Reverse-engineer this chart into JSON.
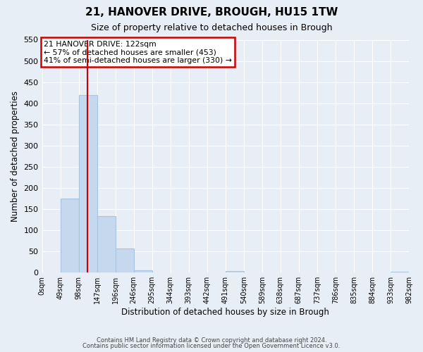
{
  "title": "21, HANOVER DRIVE, BROUGH, HU15 1TW",
  "subtitle": "Size of property relative to detached houses in Brough",
  "xlabel": "Distribution of detached houses by size in Brough",
  "ylabel": "Number of detached properties",
  "bin_edges": [
    0,
    49,
    98,
    147,
    196,
    245,
    294,
    343,
    392,
    441,
    490,
    539,
    588,
    637,
    686,
    735,
    784,
    833,
    882,
    931,
    980
  ],
  "bin_labels": [
    "0sqm",
    "49sqm",
    "98sqm",
    "147sqm",
    "196sqm",
    "246sqm",
    "295sqm",
    "344sqm",
    "393sqm",
    "442sqm",
    "491sqm",
    "540sqm",
    "589sqm",
    "638sqm",
    "687sqm",
    "737sqm",
    "786sqm",
    "835sqm",
    "884sqm",
    "933sqm",
    "982sqm"
  ],
  "counts": [
    0,
    175,
    420,
    133,
    57,
    6,
    0,
    0,
    0,
    0,
    3,
    0,
    0,
    0,
    0,
    0,
    0,
    0,
    0,
    2
  ],
  "bar_color": "#c5d8ed",
  "bar_edgecolor": "#a8c4de",
  "property_line_x": 122,
  "property_line_color": "#cc0000",
  "annotation_title": "21 HANOVER DRIVE: 122sqm",
  "annotation_line1": "← 57% of detached houses are smaller (453)",
  "annotation_line2": "41% of semi-detached houses are larger (330) →",
  "annotation_box_edgecolor": "#cc0000",
  "annotation_box_facecolor": "#ffffff",
  "ylim": [
    0,
    550
  ],
  "yticks": [
    0,
    50,
    100,
    150,
    200,
    250,
    300,
    350,
    400,
    450,
    500,
    550
  ],
  "footer1": "Contains HM Land Registry data © Crown copyright and database right 2024.",
  "footer2": "Contains public sector information licensed under the Open Government Licence v3.0.",
  "background_color": "#e8eef5",
  "plot_bg_color": "#e8eef5",
  "grid_color": "#ffffff"
}
